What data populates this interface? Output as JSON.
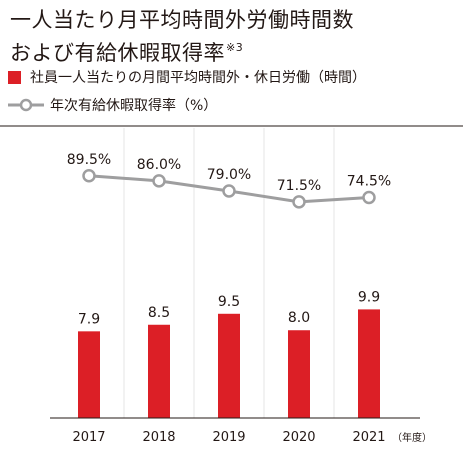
{
  "title_line1": "一人当たり月平均時間外労働時間数",
  "title_line2": "および有給休暇取得率",
  "title_note": "※3",
  "legend_bar": "社員一人当たりの月間平均時間外・休日労働（時間）",
  "legend_line": "年次有給休暇取得率（%）",
  "chart_data": {
    "type": "bar",
    "categories": [
      "2017",
      "2018",
      "2019",
      "2020",
      "2021"
    ],
    "x_unit": "（年度）",
    "series": [
      {
        "name": "社員一人当たりの月間平均時間外・休日労働（時間）",
        "type": "bar",
        "values": [
          7.9,
          8.5,
          9.5,
          8.0,
          9.9
        ],
        "labels": [
          "7.9",
          "8.5",
          "9.5",
          "8.0",
          "9.9"
        ],
        "color": "#dc1f26"
      },
      {
        "name": "年次有給休暇取得率（%）",
        "type": "line",
        "values": [
          89.5,
          86.0,
          79.0,
          71.5,
          74.5
        ],
        "labels": [
          "89.5%",
          "86.0%",
          "79.0%",
          "71.5%",
          "74.5%"
        ],
        "color": "#9e9e9f"
      }
    ],
    "grid": false,
    "legend_position": "top-left"
  }
}
